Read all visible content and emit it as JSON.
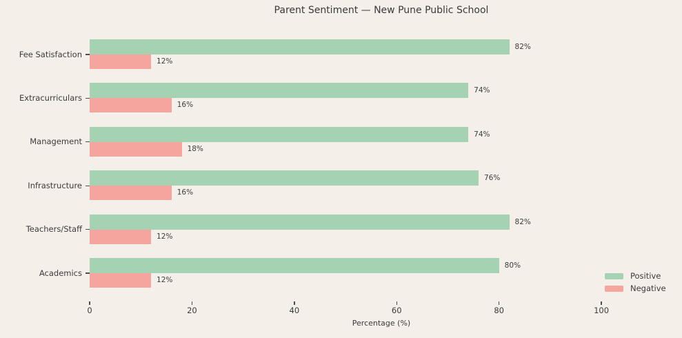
{
  "chart_data": {
    "type": "bar",
    "orientation": "horizontal",
    "title": "Parent Sentiment — New Pune Public School",
    "categories": [
      "Fee Satisfaction",
      "Extracurriculars",
      "Management",
      "Infrastructure",
      "Teachers/Staff",
      "Academics"
    ],
    "series": [
      {
        "name": "Positive",
        "color": "#a6d2b4",
        "values": [
          82,
          74,
          74,
          76,
          82,
          80
        ]
      },
      {
        "name": "Negative",
        "color": "#f5a49e",
        "values": [
          12,
          16,
          18,
          16,
          12,
          12
        ]
      }
    ],
    "value_label_suffix": "%",
    "xlabel": "Percentage (%)",
    "xticks": [
      0,
      20,
      40,
      60,
      80,
      100
    ],
    "xlim": [
      0,
      114
    ],
    "grid": false,
    "legend": {
      "position": "lower-right",
      "entries": [
        "Positive",
        "Negative"
      ]
    }
  },
  "colors": {
    "background": "#f4efe9",
    "positive": "#a6d2b4",
    "negative": "#f5a49e",
    "text": "#3b3b3b",
    "tick": "#4c4c4c"
  }
}
